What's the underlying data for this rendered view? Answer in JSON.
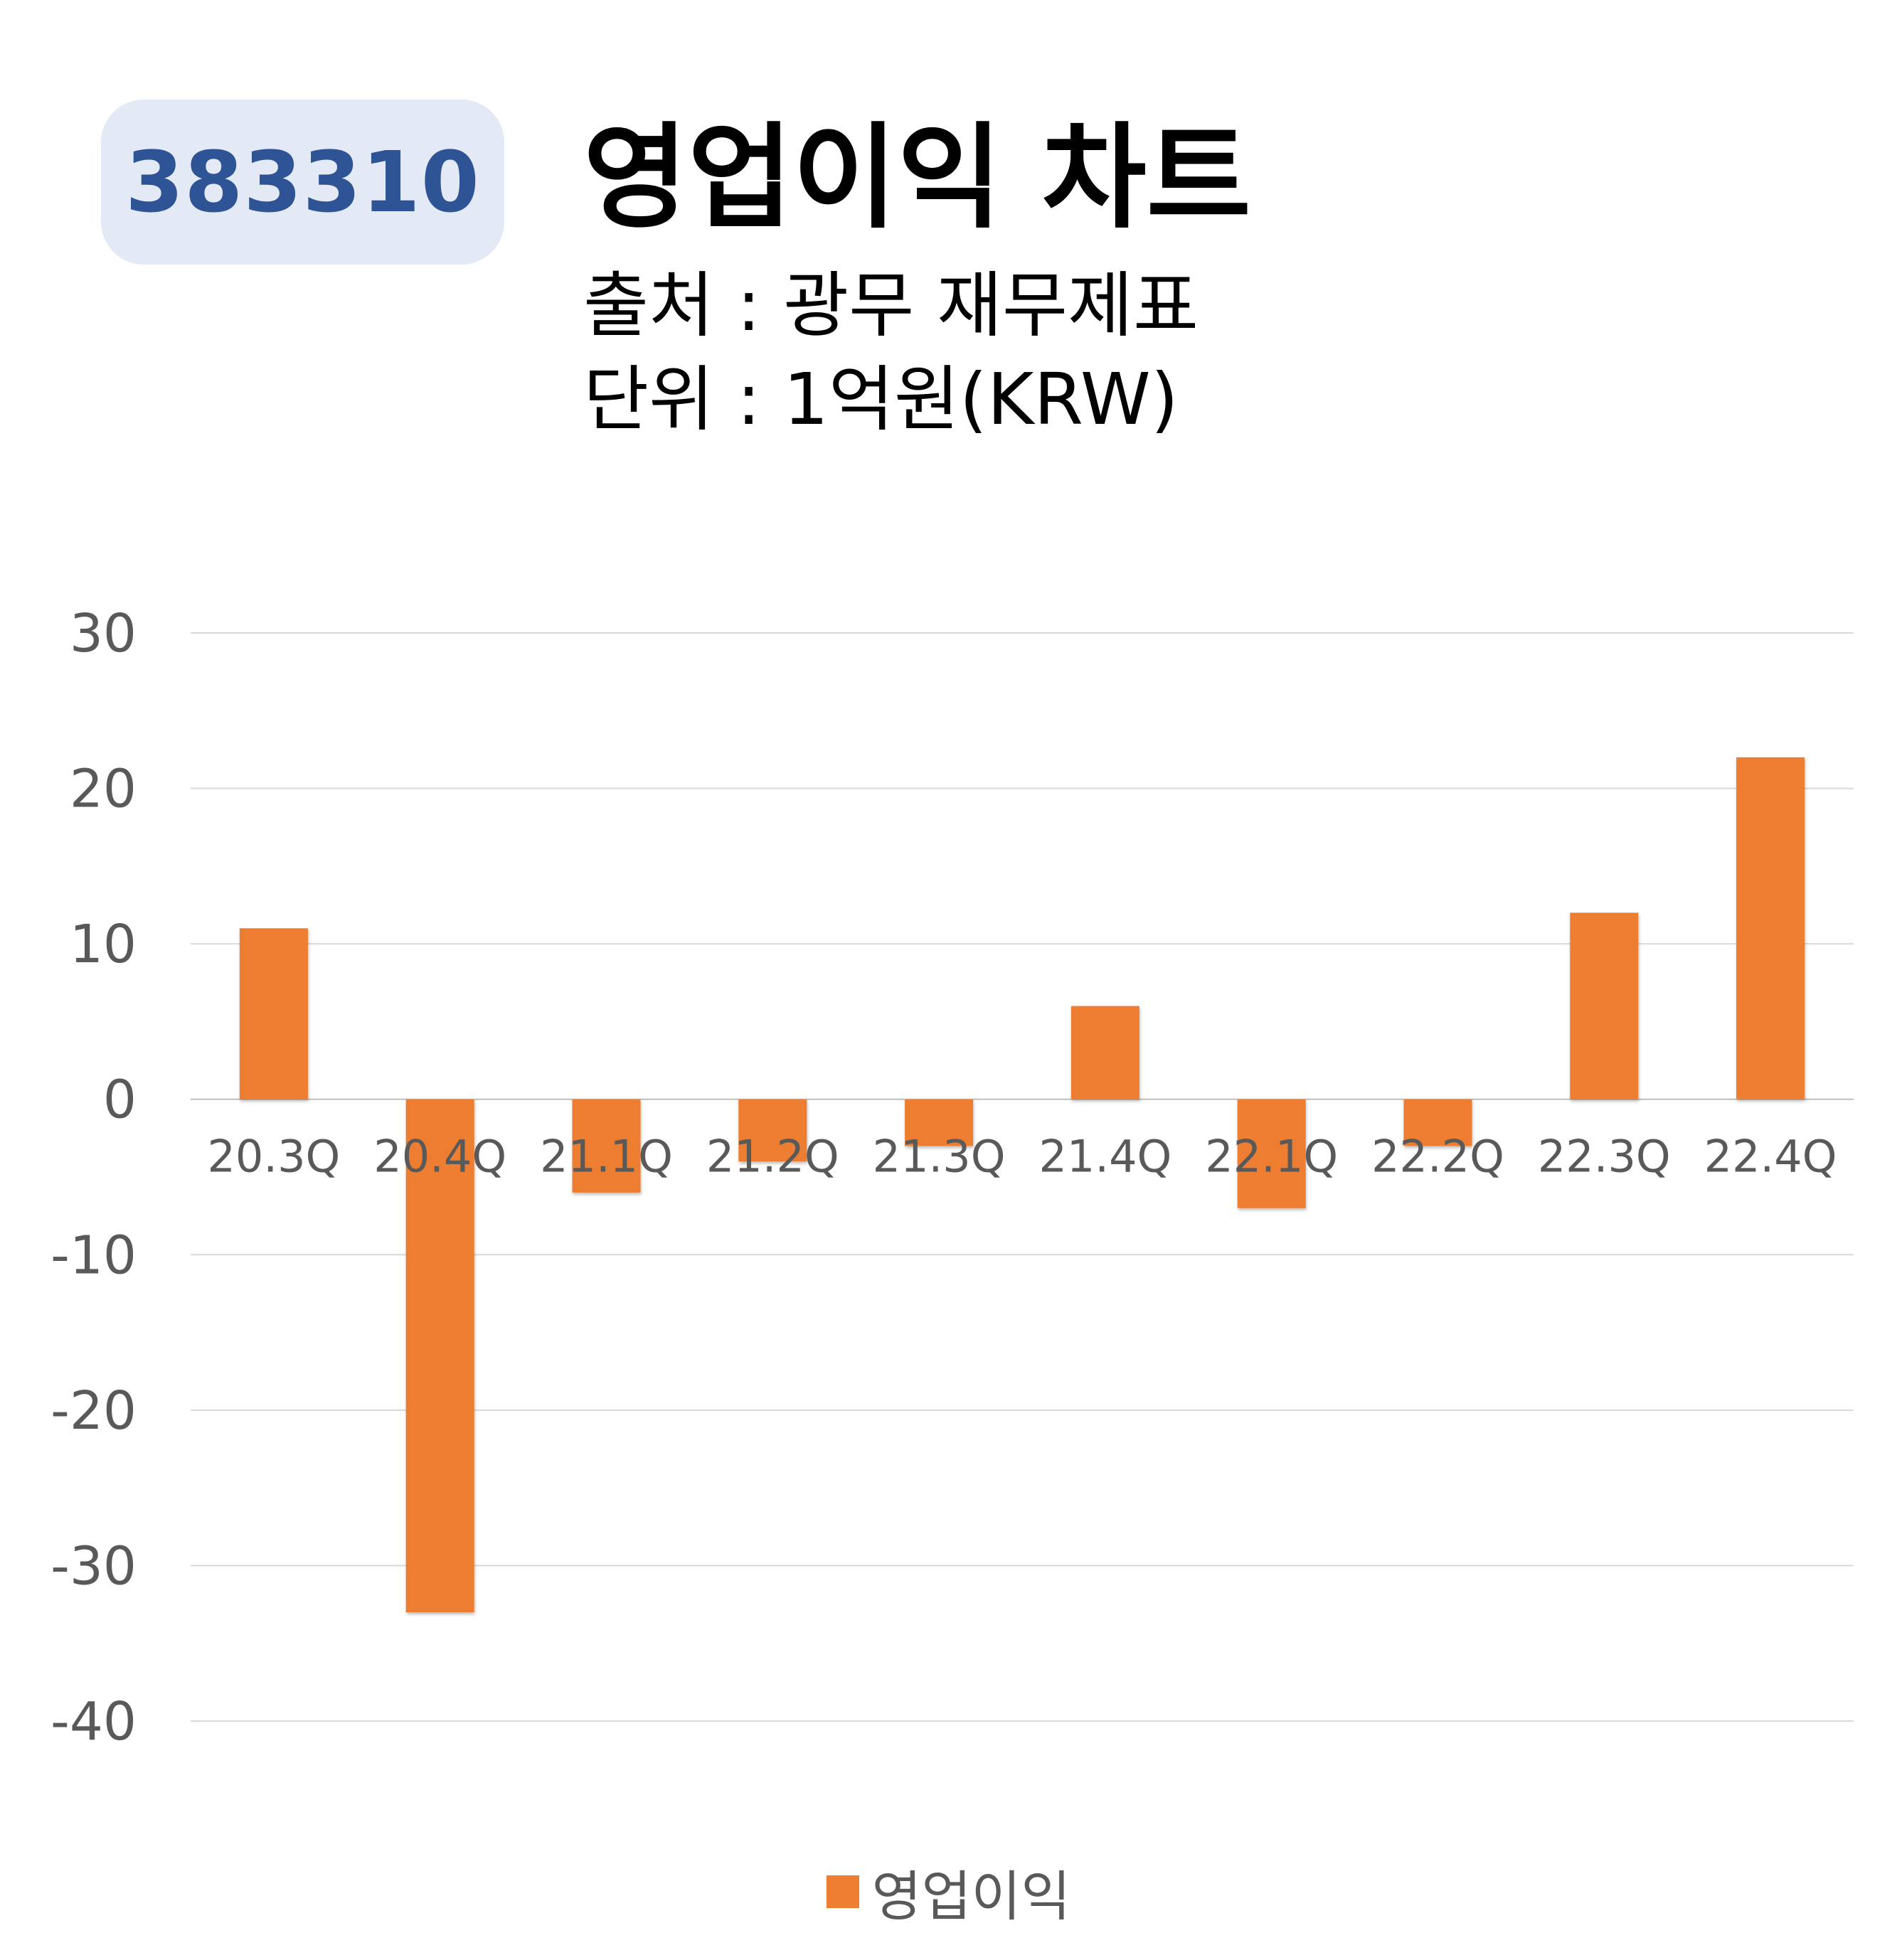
{
  "header": {
    "code": "383310",
    "title": "영업이익 차트",
    "source": "출처 : 광무 재무제표",
    "unit": "단위 : 1억원(KRW)"
  },
  "colors": {
    "bar": "#ed7d31",
    "badge_bg": "#e3e9f5",
    "badge_text": "#2f5496",
    "grid": "#d9d9d9",
    "tick_text": "#595959"
  },
  "chart_data": {
    "type": "bar",
    "categories": [
      "20.3Q",
      "20.4Q",
      "21.1Q",
      "21.2Q",
      "21.3Q",
      "21.4Q",
      "22.1Q",
      "22.2Q",
      "22.3Q",
      "22.4Q"
    ],
    "series": [
      {
        "name": "영업이익",
        "values": [
          11,
          -33,
          -6,
          -4,
          -3,
          6,
          -7,
          -3,
          12,
          22
        ]
      }
    ],
    "ylim": [
      -40,
      30
    ],
    "yticks": [
      30,
      20,
      10,
      0,
      -10,
      -20,
      -30,
      -40
    ],
    "grid": true,
    "legend": "bottom-center"
  }
}
